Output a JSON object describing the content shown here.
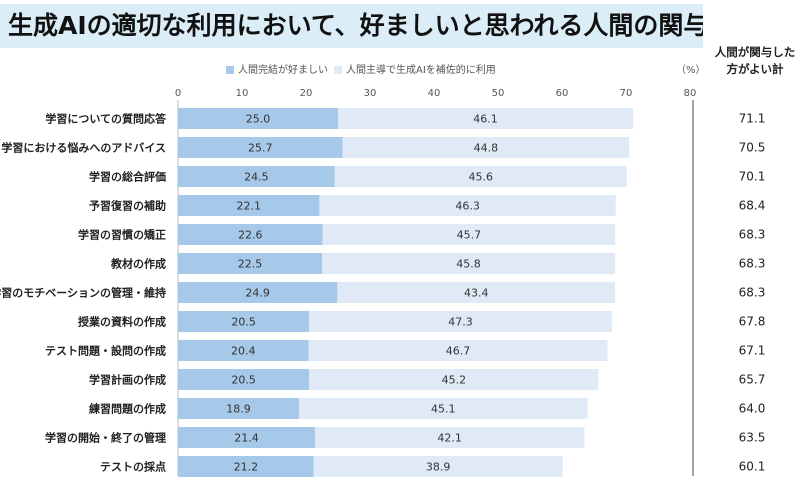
{
  "title": "生成AIの適切な利用において、好ましいと思われる人間の関与",
  "total_header": [
    "人間が関与した",
    "方がよい計"
  ],
  "unit": "（%）",
  "colors": {
    "series1": "#a6c8e9",
    "series2": "#dfeaf6",
    "axis": "#bbbbbb",
    "divider": "#444444"
  },
  "chart_data": {
    "type": "bar",
    "stacked": true,
    "orientation": "horizontal",
    "categories": [
      "学習についての質問応答",
      "学習における悩みへのアドバイス",
      "学習の総合評価",
      "予習復習の補助",
      "学習の習慣の矯正",
      "教材の作成",
      "学習のモチベーションの管理・維持",
      "授業の資料の作成",
      "テスト問題・設問の作成",
      "学習計画の作成",
      "練習問題の作成",
      "学習の開始・終了の管理",
      "テストの採点"
    ],
    "series": [
      {
        "name": "人間完結が好ましい",
        "values": [
          25.0,
          25.7,
          24.5,
          22.1,
          22.6,
          22.5,
          24.9,
          20.5,
          20.4,
          20.5,
          18.9,
          21.4,
          21.2
        ]
      },
      {
        "name": "人間主導で生成AIを補佐的に利用",
        "values": [
          46.1,
          44.8,
          45.6,
          46.3,
          45.7,
          45.8,
          43.4,
          47.3,
          46.7,
          45.2,
          45.1,
          42.1,
          38.9
        ]
      }
    ],
    "value_labels": [
      [
        "25.0",
        "25.7",
        "24.5",
        "22.1",
        "22.6",
        "22.5",
        "24.9",
        "20.5",
        "20.4",
        "20.5",
        "18.9",
        "21.4",
        "21.2"
      ],
      [
        "46.1",
        "44.8",
        "45.6",
        "46.3",
        "45.7",
        "45.8",
        "43.4",
        "47.3",
        "46.7",
        "45.2",
        "45.1",
        "42.1",
        "38.9"
      ]
    ],
    "totals": [
      "71.1",
      "70.5",
      "70.1",
      "68.4",
      "68.3",
      "68.3",
      "68.3",
      "67.8",
      "67.1",
      "65.7",
      "64.0",
      "63.5",
      "60.1"
    ],
    "xlim": [
      0,
      80
    ],
    "xticks": [
      0,
      10,
      20,
      30,
      40,
      50,
      60,
      70,
      80
    ],
    "legend_position": "top",
    "grid": false
  }
}
